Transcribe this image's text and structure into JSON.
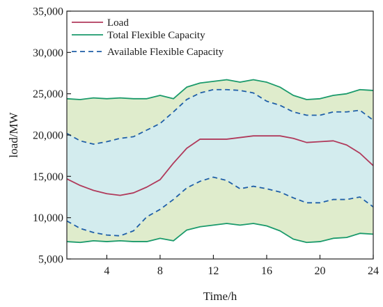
{
  "chart_data": {
    "type": "line",
    "xlabel": "Time/h",
    "ylabel": "load/MW",
    "xlim": [
      1,
      24
    ],
    "ylim": [
      5000,
      35000
    ],
    "xticks": [
      4,
      8,
      12,
      16,
      20,
      24
    ],
    "yticks": [
      5000,
      10000,
      15000,
      20000,
      25000,
      30000,
      35000
    ],
    "xtick_labels": [
      "4",
      "8",
      "12",
      "16",
      "20",
      "24"
    ],
    "ytick_labels": [
      "5,000",
      "10,000",
      "15,000",
      "20,000",
      "25,000",
      "30,000",
      "35,000"
    ],
    "grid": false,
    "legend_position": "top-left",
    "x": [
      1,
      2,
      3,
      4,
      5,
      6,
      7,
      8,
      9,
      10,
      11,
      12,
      13,
      14,
      15,
      16,
      17,
      18,
      19,
      20,
      21,
      22,
      23,
      24
    ],
    "series": [
      {
        "name": "Load",
        "style": "solid",
        "color": "#b03a5b",
        "values": [
          14700,
          13900,
          13300,
          12900,
          12700,
          13000,
          13700,
          14600,
          16600,
          18400,
          19500,
          19500,
          19500,
          19700,
          19900,
          19900,
          19900,
          19600,
          19100,
          19200,
          19300,
          18800,
          17800,
          16300
        ]
      },
      {
        "name": "Total Flexible Capacity",
        "style": "solid",
        "color": "#1a9a6b",
        "upper": [
          24400,
          24300,
          24500,
          24400,
          24500,
          24400,
          24400,
          24800,
          24400,
          25800,
          26300,
          26500,
          26700,
          26400,
          26700,
          26400,
          25800,
          24800,
          24300,
          24400,
          24800,
          25000,
          25500,
          25400
        ],
        "lower": [
          7100,
          7000,
          7200,
          7100,
          7200,
          7100,
          7100,
          7500,
          7200,
          8500,
          8900,
          9100,
          9300,
          9100,
          9300,
          9000,
          8400,
          7400,
          7000,
          7100,
          7500,
          7600,
          8100,
          8000
        ]
      },
      {
        "name": "Available Flexible Capacity",
        "style": "dashed",
        "color": "#1f5fa8",
        "upper": [
          20200,
          19300,
          18900,
          19200,
          19600,
          19800,
          20600,
          21400,
          22800,
          24300,
          25100,
          25500,
          25500,
          25400,
          25100,
          24100,
          23600,
          22800,
          22400,
          22400,
          22800,
          22800,
          23000,
          21800
        ],
        "lower": [
          9600,
          8700,
          8200,
          7900,
          7800,
          8400,
          10100,
          11000,
          12200,
          13600,
          14400,
          14900,
          14500,
          13500,
          13800,
          13500,
          13100,
          12400,
          11800,
          11800,
          12200,
          12200,
          12500,
          11300
        ]
      }
    ],
    "colors": {
      "outer_band_fill": "#dfeccc",
      "inner_band_fill": "#d3ecee",
      "axis": "#222222"
    }
  }
}
